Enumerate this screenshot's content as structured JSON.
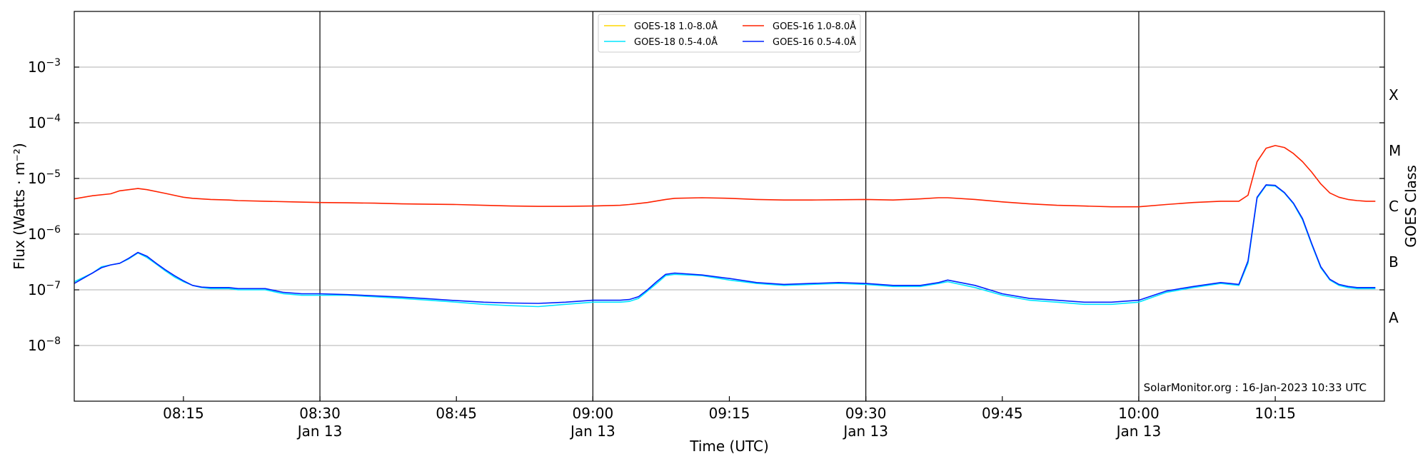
{
  "chart_data": {
    "type": "line",
    "xlabel": "Time (UTC)",
    "ylabel": "Flux (Watts · m⁻²)",
    "ylabel_right": "GOES Class",
    "credit": "SolarMonitor.org : 16-Jan-2023 10:33 UTC",
    "x_range": [
      "08:03",
      "10:27"
    ],
    "y_scale": "log",
    "ylim": [
      1e-09,
      0.01
    ],
    "y_ticks": [
      {
        "value": 1e-08,
        "base": "10",
        "exp": "−8"
      },
      {
        "value": 1e-07,
        "base": "10",
        "exp": "−7"
      },
      {
        "value": 1e-06,
        "base": "10",
        "exp": "−6"
      },
      {
        "value": 1e-05,
        "base": "10",
        "exp": "−5"
      },
      {
        "value": 0.0001,
        "base": "10",
        "exp": "−4"
      },
      {
        "value": 0.001,
        "base": "10",
        "exp": "−3"
      }
    ],
    "x_ticks": [
      {
        "time": "08:15",
        "label": "08:15",
        "sublabel": ""
      },
      {
        "time": "08:30",
        "label": "08:30",
        "sublabel": "Jan 13"
      },
      {
        "time": "08:45",
        "label": "08:45",
        "sublabel": ""
      },
      {
        "time": "09:00",
        "label": "09:00",
        "sublabel": "Jan 13"
      },
      {
        "time": "09:15",
        "label": "09:15",
        "sublabel": ""
      },
      {
        "time": "09:30",
        "label": "09:30",
        "sublabel": "Jan 13"
      },
      {
        "time": "09:45",
        "label": "09:45",
        "sublabel": ""
      },
      {
        "time": "10:00",
        "label": "10:00",
        "sublabel": "Jan 13"
      },
      {
        "time": "10:15",
        "label": "10:15",
        "sublabel": ""
      }
    ],
    "vlines": [
      "08:30",
      "09:00",
      "09:30",
      "10:00"
    ],
    "grid": "horizontal",
    "goes_classes": [
      {
        "label": "A",
        "value": 3.16e-08
      },
      {
        "label": "B",
        "value": 3.16e-07
      },
      {
        "label": "C",
        "value": 3.16e-06
      },
      {
        "label": "M",
        "value": 3.16e-05
      },
      {
        "label": "X",
        "value": 0.000316
      }
    ],
    "legend_position": "top-center",
    "legend": [
      {
        "name": "GOES-18 1.0-8.0Å",
        "color": "#ffd700"
      },
      {
        "name": "GOES-18 0.5-4.0Å",
        "color": "#00e5ff"
      },
      {
        "name": "GOES-16 1.0-8.0Å",
        "color": "#ff2200"
      },
      {
        "name": "GOES-16 0.5-4.0Å",
        "color": "#0022ff"
      }
    ],
    "series": [
      {
        "name": "GOES-16 1.0-8.0Å",
        "color": "#ff2200",
        "x": [
          "08:03",
          "08:05",
          "08:07",
          "08:08",
          "08:10",
          "08:11",
          "08:13",
          "08:15",
          "08:16",
          "08:18",
          "08:20",
          "08:21",
          "08:24",
          "08:27",
          "08:30",
          "08:33",
          "08:36",
          "08:39",
          "08:42",
          "08:45",
          "08:48",
          "08:51",
          "08:54",
          "08:57",
          "09:00",
          "09:03",
          "09:04",
          "09:06",
          "09:08",
          "09:09",
          "09:12",
          "09:15",
          "09:18",
          "09:21",
          "09:24",
          "09:27",
          "09:30",
          "09:33",
          "09:36",
          "09:38",
          "09:39",
          "09:42",
          "09:45",
          "09:48",
          "09:51",
          "09:54",
          "09:57",
          "10:00",
          "10:03",
          "10:06",
          "10:09",
          "10:10",
          "10:11",
          "10:12",
          "10:13",
          "10:14",
          "10:15",
          "10:16",
          "10:17",
          "10:18",
          "10:19",
          "10:20",
          "10:21",
          "10:22",
          "10:23",
          "10:24",
          "10:25",
          "10:26"
        ],
        "y": [
          4.3e-06,
          4.9e-06,
          5.3e-06,
          6e-06,
          6.6e-06,
          6.3e-06,
          5.4e-06,
          4.6e-06,
          4.4e-06,
          4.2e-06,
          4.1e-06,
          4e-06,
          3.9e-06,
          3.8e-06,
          3.7e-06,
          3.65e-06,
          3.6e-06,
          3.5e-06,
          3.45e-06,
          3.4e-06,
          3.3e-06,
          3.2e-06,
          3.15e-06,
          3.15e-06,
          3.2e-06,
          3.3e-06,
          3.4e-06,
          3.7e-06,
          4.2e-06,
          4.4e-06,
          4.5e-06,
          4.4e-06,
          4.2e-06,
          4.1e-06,
          4.1e-06,
          4.15e-06,
          4.2e-06,
          4.1e-06,
          4.3e-06,
          4.5e-06,
          4.5e-06,
          4.2e-06,
          3.8e-06,
          3.5e-06,
          3.3e-06,
          3.2e-06,
          3.1e-06,
          3.1e-06,
          3.4e-06,
          3.7e-06,
          3.9e-06,
          3.9e-06,
          3.9e-06,
          5e-06,
          2e-05,
          3.5e-05,
          3.9e-05,
          3.6e-05,
          2.8e-05,
          2e-05,
          1.3e-05,
          8e-06,
          5.5e-06,
          4.6e-06,
          4.2e-06,
          4e-06,
          3.9e-06,
          3.9e-06
        ]
      },
      {
        "name": "GOES-18 0.5-4.0Å",
        "color": "#00e5ff",
        "x": [
          "08:03",
          "08:05",
          "08:06",
          "08:07",
          "08:08",
          "08:09",
          "08:10",
          "08:11",
          "08:12",
          "08:13",
          "08:14",
          "08:15",
          "08:16",
          "08:17",
          "08:18",
          "08:20",
          "08:21",
          "08:23",
          "08:24",
          "08:26",
          "08:28",
          "08:30",
          "08:33",
          "08:36",
          "08:39",
          "08:42",
          "08:45",
          "08:48",
          "08:51",
          "08:54",
          "08:57",
          "09:00",
          "09:03",
          "09:04",
          "09:05",
          "09:06",
          "09:07",
          "09:08",
          "09:09",
          "09:12",
          "09:15",
          "09:18",
          "09:21",
          "09:24",
          "09:27",
          "09:30",
          "09:33",
          "09:36",
          "09:38",
          "09:39",
          "09:42",
          "09:45",
          "09:48",
          "09:51",
          "09:54",
          "09:57",
          "10:00",
          "10:03",
          "10:06",
          "10:09",
          "10:10",
          "10:11",
          "10:12",
          "10:13",
          "10:14",
          "10:15",
          "10:16",
          "10:17",
          "10:18",
          "10:19",
          "10:20",
          "10:21",
          "10:22",
          "10:23",
          "10:24",
          "10:25",
          "10:26"
        ],
        "y": [
          1.4e-07,
          2e-07,
          2.6e-07,
          2.8e-07,
          3e-07,
          3.6e-07,
          4.6e-07,
          3.8e-07,
          2.9e-07,
          2.2e-07,
          1.7e-07,
          1.4e-07,
          1.2e-07,
          1.1e-07,
          1.05e-07,
          1.05e-07,
          1e-07,
          1e-07,
          1e-07,
          8.5e-08,
          8e-08,
          8e-08,
          8e-08,
          7.5e-08,
          7e-08,
          6.5e-08,
          6e-08,
          5.5e-08,
          5.2e-08,
          5e-08,
          5.5e-08,
          6e-08,
          6e-08,
          6.2e-08,
          7e-08,
          9.5e-08,
          1.3e-07,
          1.8e-07,
          1.9e-07,
          1.8e-07,
          1.5e-07,
          1.3e-07,
          1.2e-07,
          1.25e-07,
          1.3e-07,
          1.25e-07,
          1.15e-07,
          1.15e-07,
          1.3e-07,
          1.4e-07,
          1.1e-07,
          8e-08,
          6.5e-08,
          6e-08,
          5.5e-08,
          5.5e-08,
          6e-08,
          9e-08,
          1.1e-07,
          1.3e-07,
          1.25e-07,
          1.2e-07,
          3e-07,
          4.4e-06,
          7.5e-06,
          7.3e-06,
          5.5e-06,
          3.5e-06,
          1.8e-06,
          6.5e-07,
          2.5e-07,
          1.5e-07,
          1.2e-07,
          1.1e-07,
          1.05e-07,
          1.05e-07,
          1.05e-07
        ]
      },
      {
        "name": "GOES-16 0.5-4.0Å",
        "color": "#0022ff",
        "x": [
          "08:03",
          "08:05",
          "08:06",
          "08:07",
          "08:08",
          "08:09",
          "08:10",
          "08:11",
          "08:12",
          "08:13",
          "08:14",
          "08:15",
          "08:16",
          "08:17",
          "08:18",
          "08:20",
          "08:21",
          "08:23",
          "08:24",
          "08:26",
          "08:28",
          "08:30",
          "08:33",
          "08:36",
          "08:39",
          "08:42",
          "08:45",
          "08:48",
          "08:51",
          "08:54",
          "08:57",
          "09:00",
          "09:03",
          "09:04",
          "09:05",
          "09:06",
          "09:07",
          "09:08",
          "09:09",
          "09:12",
          "09:15",
          "09:18",
          "09:21",
          "09:24",
          "09:27",
          "09:30",
          "09:33",
          "09:36",
          "09:38",
          "09:39",
          "09:42",
          "09:45",
          "09:48",
          "09:51",
          "09:54",
          "09:57",
          "10:00",
          "10:03",
          "10:06",
          "10:09",
          "10:10",
          "10:11",
          "10:12",
          "10:13",
          "10:14",
          "10:15",
          "10:16",
          "10:17",
          "10:18",
          "10:19",
          "10:20",
          "10:21",
          "10:22",
          "10:23",
          "10:24",
          "10:25",
          "10:26"
        ],
        "y": [
          1.3e-07,
          2e-07,
          2.5e-07,
          2.8e-07,
          3e-07,
          3.7e-07,
          4.7e-07,
          4e-07,
          3e-07,
          2.3e-07,
          1.8e-07,
          1.45e-07,
          1.2e-07,
          1.12e-07,
          1.1e-07,
          1.1e-07,
          1.05e-07,
          1.05e-07,
          1.05e-07,
          9e-08,
          8.5e-08,
          8.5e-08,
          8.2e-08,
          7.8e-08,
          7.4e-08,
          6.9e-08,
          6.4e-08,
          6e-08,
          5.8e-08,
          5.7e-08,
          6e-08,
          6.5e-08,
          6.5e-08,
          6.7e-08,
          7.5e-08,
          1e-07,
          1.4e-07,
          1.9e-07,
          2e-07,
          1.85e-07,
          1.6e-07,
          1.35e-07,
          1.25e-07,
          1.3e-07,
          1.35e-07,
          1.3e-07,
          1.2e-07,
          1.2e-07,
          1.35e-07,
          1.5e-07,
          1.2e-07,
          8.5e-08,
          7e-08,
          6.5e-08,
          6e-08,
          6e-08,
          6.5e-08,
          9.5e-08,
          1.15e-07,
          1.35e-07,
          1.3e-07,
          1.25e-07,
          3.3e-07,
          4.6e-06,
          7.7e-06,
          7.5e-06,
          5.6e-06,
          3.6e-06,
          1.9e-06,
          6.8e-07,
          2.6e-07,
          1.55e-07,
          1.25e-07,
          1.15e-07,
          1.1e-07,
          1.1e-07,
          1.1e-07
        ]
      }
    ]
  }
}
